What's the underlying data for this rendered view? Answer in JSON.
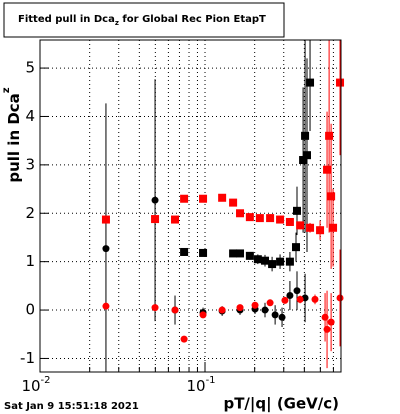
{
  "chart_data": {
    "type": "scatter",
    "title": [
      "Fitted pull in Dca",
      "z",
      " for Global Rec Pion EtapT"
    ],
    "y_label": [
      "pull in Dca",
      "z"
    ],
    "x_label": "pT/|q| (GeV/c)",
    "timestamp": "Sat Jan  9 15:51:18 2021",
    "log_x": true,
    "grid": true,
    "xlim": [
      0.01,
      0.667
    ],
    "ylim": [
      -1.28,
      5.58
    ],
    "xticks": [
      {
        "value": 0.01,
        "label": "10",
        "exponent": "-2"
      },
      {
        "value": 0.1,
        "label": "10",
        "exponent": "-1"
      }
    ],
    "xminorticks": [
      0.02,
      0.03,
      0.04,
      0.05,
      0.06,
      0.07,
      0.08,
      0.09,
      0.2,
      0.3,
      0.4,
      0.5,
      0.6
    ],
    "yticks": [
      -1,
      0,
      1,
      2,
      3,
      4,
      5
    ],
    "series": [
      {
        "color": "#000000",
        "marker": "circle",
        "x": [
          0.0251,
          0.0498,
          0.0658,
          0.0973,
          0.127,
          0.163,
          0.201,
          0.231,
          0.266,
          0.293,
          0.327,
          0.361,
          0.404
        ],
        "values": [
          1.27,
          2.27,
          0.0,
          -0.05,
          -0.02,
          0.0,
          0.02,
          0.0,
          -0.1,
          -0.15,
          0.3,
          0.4,
          0.25
        ],
        "errors": [
          3.0,
          2.5,
          0.3,
          0.1,
          0.1,
          0.1,
          0.1,
          0.15,
          0.2,
          0.2,
          0.3,
          0.4,
          0.5
        ]
      },
      {
        "color": "#000000",
        "marker": "square",
        "x": [
          0.0747,
          0.0973,
          0.148,
          0.163,
          0.187,
          0.209,
          0.231,
          0.255,
          0.285,
          0.327,
          0.356,
          0.361,
          0.393,
          0.404,
          0.415,
          0.433
        ],
        "values": [
          1.2,
          1.18,
          1.17,
          1.17,
          1.12,
          1.05,
          1.02,
          0.95,
          1.0,
          1.0,
          1.3,
          2.05,
          3.1,
          3.6,
          3.2,
          4.7
        ],
        "errors": [
          0.08,
          0.06,
          0.06,
          0.06,
          0.08,
          0.1,
          0.12,
          0.15,
          0.15,
          0.2,
          0.3,
          0.5,
          1.5,
          2.0,
          2.0,
          1.0
        ]
      },
      {
        "color": "#ff0000",
        "marker": "square",
        "x": [
          0.0251,
          0.0498,
          0.0658,
          0.0747,
          0.0973,
          0.127,
          0.148,
          0.163,
          0.187,
          0.215,
          0.248,
          0.285,
          0.327,
          0.377,
          0.433,
          0.498,
          0.549,
          0.565,
          0.581,
          0.597,
          0.658
        ],
        "values": [
          1.87,
          1.88,
          1.87,
          2.3,
          2.3,
          2.32,
          2.22,
          2.0,
          1.92,
          1.9,
          1.9,
          1.87,
          1.82,
          1.75,
          1.7,
          1.65,
          2.9,
          3.6,
          2.35,
          1.7,
          4.7
        ],
        "errors": [
          0.05,
          0.05,
          0.05,
          0.05,
          0.05,
          0.05,
          0.05,
          0.05,
          0.05,
          0.05,
          0.05,
          0.05,
          0.06,
          0.08,
          0.1,
          0.2,
          1.2,
          2.0,
          1.5,
          0.8,
          1.5
        ]
      },
      {
        "color": "#ff0000",
        "marker": "circle",
        "x": [
          0.0251,
          0.0498,
          0.0658,
          0.0747,
          0.0973,
          0.127,
          0.163,
          0.201,
          0.248,
          0.305,
          0.377,
          0.464,
          0.534,
          0.549,
          0.581,
          0.658
        ],
        "values": [
          0.08,
          0.05,
          0.0,
          -0.6,
          -0.1,
          0.0,
          0.05,
          0.1,
          0.15,
          0.2,
          0.22,
          0.22,
          -0.15,
          -0.4,
          -0.25,
          0.25
        ],
        "errors": [
          0.05,
          0.05,
          0.05,
          0.05,
          0.05,
          0.05,
          0.05,
          0.05,
          0.05,
          0.06,
          0.08,
          0.1,
          0.5,
          0.8,
          0.6,
          1.0
        ]
      }
    ]
  }
}
